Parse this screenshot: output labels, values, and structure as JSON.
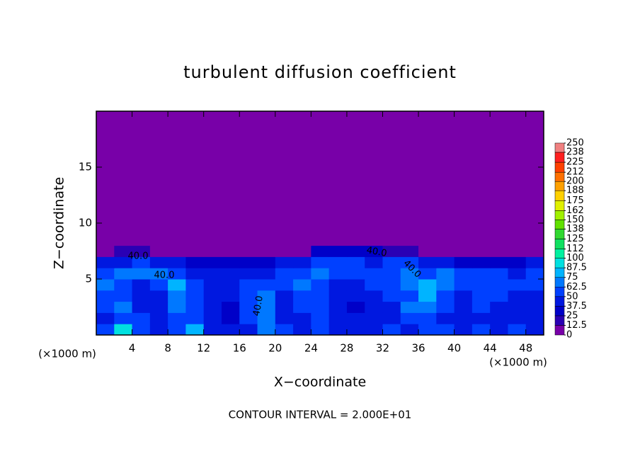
{
  "chart_data": {
    "type": "contour",
    "title": "turbulent diffusion coefficient",
    "x_label": "X−coordinate",
    "y_label": "Z−coordinate",
    "x_unit": "(×1000 m)",
    "y_unit": "(×1000 m)",
    "footer": "CONTOUR INTERVAL = 2.000E+01",
    "contour_labels": [
      "40.0",
      "40.0",
      "40.0",
      "40.0",
      "40.0"
    ],
    "xlim": [
      0,
      50
    ],
    "ylim": [
      0,
      20
    ],
    "xticks": [
      4,
      8,
      12,
      16,
      20,
      24,
      28,
      32,
      36,
      40,
      44,
      48
    ],
    "yticks": [
      5,
      10,
      15
    ],
    "x_edges": [
      0,
      2,
      4,
      6,
      8,
      10,
      12,
      14,
      16,
      18,
      20,
      22,
      24,
      26,
      28,
      30,
      32,
      34,
      36,
      38,
      40,
      42,
      44,
      46,
      48,
      50
    ],
    "z_edges": [
      0,
      1,
      2,
      3,
      4,
      5,
      6,
      7,
      8,
      20
    ],
    "field": [
      [
        50,
        95,
        55,
        45,
        50,
        85,
        45,
        45,
        45,
        70,
        50,
        45,
        50,
        45,
        45,
        45,
        50,
        45,
        55,
        50,
        45,
        50,
        45,
        50,
        45
      ],
      [
        45,
        60,
        50,
        40,
        60,
        55,
        40,
        35,
        60,
        65,
        40,
        45,
        60,
        40,
        40,
        40,
        45,
        55,
        60,
        45,
        40,
        45,
        40,
        45,
        40
      ],
      [
        55,
        70,
        45,
        40,
        65,
        60,
        45,
        35,
        55,
        70,
        45,
        55,
        60,
        40,
        35,
        40,
        45,
        65,
        70,
        55,
        40,
        50,
        45,
        45,
        40
      ],
      [
        60,
        55,
        40,
        45,
        70,
        55,
        45,
        40,
        60,
        65,
        45,
        60,
        55,
        40,
        40,
        45,
        50,
        60,
        75,
        60,
        45,
        55,
        50,
        45,
        45
      ],
      [
        65,
        50,
        45,
        50,
        75,
        50,
        45,
        45,
        55,
        55,
        50,
        65,
        50,
        45,
        45,
        50,
        55,
        65,
        80,
        65,
        50,
        60,
        55,
        50,
        50
      ],
      [
        55,
        70,
        70,
        65,
        55,
        45,
        40,
        40,
        45,
        45,
        55,
        60,
        65,
        55,
        50,
        50,
        60,
        70,
        60,
        70,
        55,
        50,
        55,
        45,
        50
      ],
      [
        40,
        45,
        50,
        45,
        40,
        35,
        35,
        35,
        35,
        35,
        40,
        45,
        50,
        55,
        60,
        45,
        55,
        50,
        40,
        45,
        35,
        25,
        30,
        35,
        40
      ],
      [
        0,
        20,
        15,
        0,
        0,
        0,
        0,
        0,
        0,
        0,
        0,
        0,
        25,
        30,
        35,
        30,
        20,
        15,
        0,
        0,
        0,
        0,
        0,
        0,
        0
      ],
      [
        0,
        0,
        0,
        0,
        0,
        0,
        0,
        0,
        0,
        0,
        0,
        0,
        0,
        0,
        0,
        0,
        0,
        0,
        0,
        0,
        0,
        0,
        0,
        0,
        0
      ]
    ],
    "colorbar_ticks": [
      0,
      12.5,
      25,
      37.5,
      50,
      62.5,
      75,
      87.5,
      100,
      112,
      125,
      138,
      150,
      162,
      175,
      188,
      200,
      212,
      225,
      238,
      250
    ],
    "colors": [
      "#7800a8",
      "#2a00b4",
      "#0000c8",
      "#0018e0",
      "#0040ff",
      "#0078ff",
      "#00b4ff",
      "#00e0e0",
      "#00f0a0",
      "#10e060",
      "#30d830",
      "#60e000",
      "#a0f000",
      "#e0f000",
      "#ffd000",
      "#ffa000",
      "#ff7000",
      "#ff4000",
      "#ff2020",
      "#f08080"
    ]
  }
}
